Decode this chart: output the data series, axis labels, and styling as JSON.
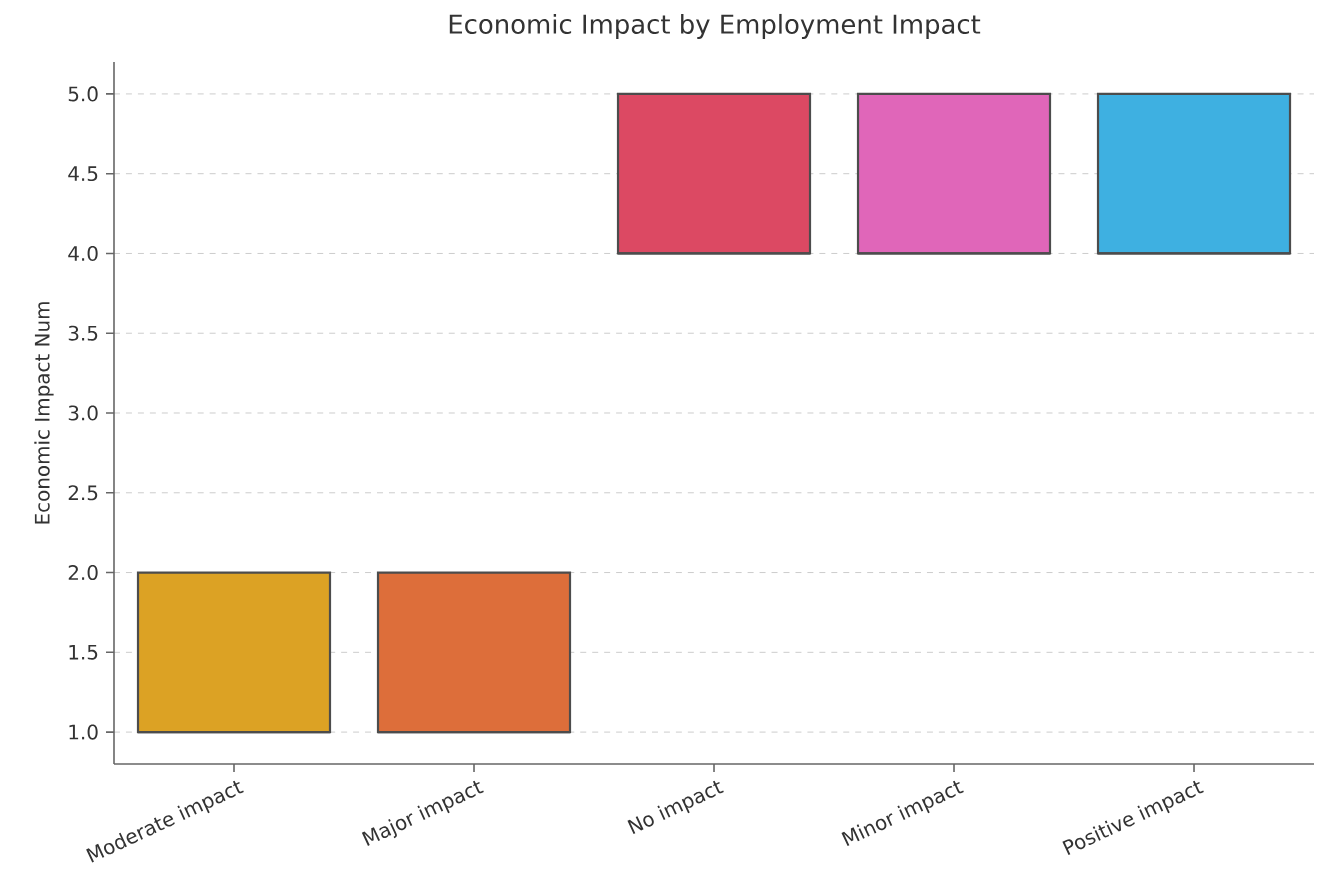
{
  "chart_data": {
    "type": "box",
    "title": "Economic Impact by Employment Impact",
    "ylabel": "Economic Impact Num",
    "categories": [
      "Moderate impact",
      "Major impact",
      "No impact",
      "Minor impact",
      "Positive impact"
    ],
    "boxes": [
      {
        "low": 1,
        "q1": 1,
        "median": 1,
        "q3": 2,
        "high": 2
      },
      {
        "low": 1,
        "q1": 1,
        "median": 1,
        "q3": 2,
        "high": 2
      },
      {
        "low": 4,
        "q1": 4,
        "median": 4,
        "q3": 5,
        "high": 5
      },
      {
        "low": 4,
        "q1": 4,
        "median": 4,
        "q3": 5,
        "high": 5
      },
      {
        "low": 4,
        "q1": 4,
        "median": 4,
        "q3": 5,
        "high": 5
      }
    ],
    "colors": [
      "#dca224",
      "#dd6e3a",
      "#dc4963",
      "#e066b9",
      "#3eb0e1"
    ],
    "ylim": [
      0.8,
      5.2
    ],
    "yticks": [
      {
        "value": 1,
        "label": "1.0"
      },
      {
        "value": 1.5,
        "label": "1.5"
      },
      {
        "value": 2,
        "label": "2.0"
      },
      {
        "value": 2.5,
        "label": "2.5"
      },
      {
        "value": 3,
        "label": "3.0"
      },
      {
        "value": 3.5,
        "label": "3.5"
      },
      {
        "value": 4,
        "label": "4.0"
      },
      {
        "value": 4.5,
        "label": "4.5"
      },
      {
        "value": 5,
        "label": "5.0"
      }
    ],
    "grid": "y"
  }
}
